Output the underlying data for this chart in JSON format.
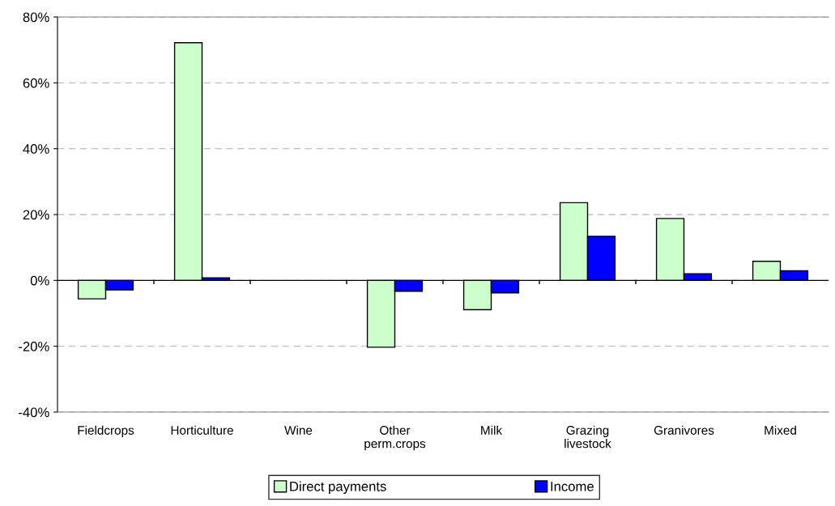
{
  "chart_data": {
    "type": "bar",
    "categories": [
      "Fieldcrops",
      "Horticulture",
      "Wine",
      "Other\nperm.crops",
      "Milk",
      "Grazing\nlivestock",
      "Granivores",
      "Mixed"
    ],
    "series": [
      {
        "name": "Direct payments",
        "color": "#ccffcc",
        "values": [
          -5.6,
          72.2,
          null,
          -20.3,
          -8.9,
          23.6,
          18.8,
          5.8
        ]
      },
      {
        "name": "Income",
        "color": "#0000ff",
        "values": [
          -2.9,
          0.8,
          null,
          -3.3,
          -3.8,
          13.4,
          2.0,
          2.9
        ]
      }
    ],
    "ylim": [
      -40,
      80
    ],
    "yticks": [
      {
        "value": -40,
        "label": "-40%"
      },
      {
        "value": -20,
        "label": "-20%"
      },
      {
        "value": 0,
        "label": "0%"
      },
      {
        "value": 20,
        "label": "20%"
      },
      {
        "value": 40,
        "label": "40%"
      },
      {
        "value": 60,
        "label": "60%"
      },
      {
        "value": 80,
        "label": "80%"
      }
    ],
    "grid": "y",
    "legend": "bottom"
  }
}
